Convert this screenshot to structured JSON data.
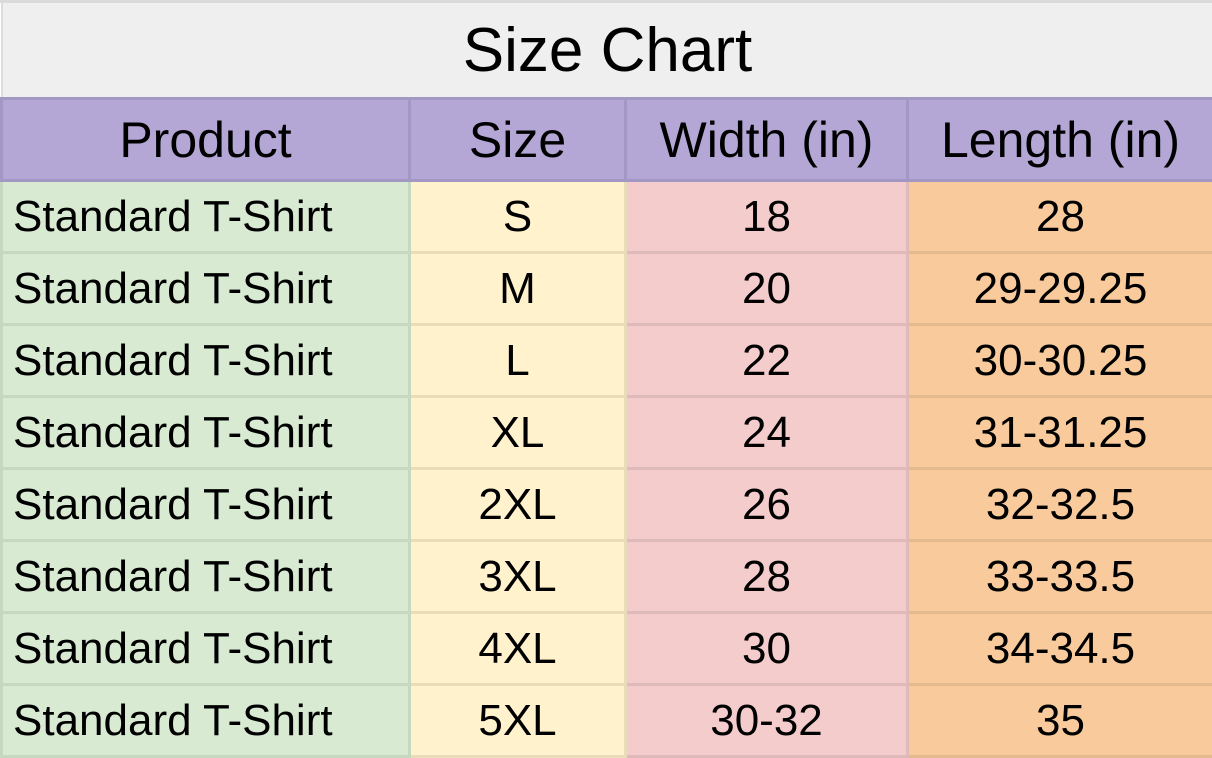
{
  "title": "Size Chart",
  "headers": [
    "Product",
    "Size",
    "Width (in)",
    "Length (in)"
  ],
  "rows": [
    [
      "Standard T-Shirt",
      "S",
      "18",
      "28"
    ],
    [
      "Standard T-Shirt",
      "M",
      "20",
      "29-29.25"
    ],
    [
      "Standard T-Shirt",
      "L",
      "22",
      "30-30.25"
    ],
    [
      "Standard T-Shirt",
      "XL",
      "24",
      "31-31.25"
    ],
    [
      "Standard T-Shirt",
      "2XL",
      "26",
      "32-32.5"
    ],
    [
      "Standard T-Shirt",
      "3XL",
      "28",
      "33-33.5"
    ],
    [
      "Standard T-Shirt",
      "4XL",
      "30",
      "34-34.5"
    ],
    [
      "Standard T-Shirt",
      "5XL",
      "30-32",
      "35"
    ]
  ],
  "colors": {
    "title_bg": "#efefef",
    "header_bg": "#b4a7d6",
    "product_col": "#d9ead3",
    "size_col": "#fff2cc",
    "width_col": "#f4cccc",
    "length_col": "#f9cb9c"
  }
}
